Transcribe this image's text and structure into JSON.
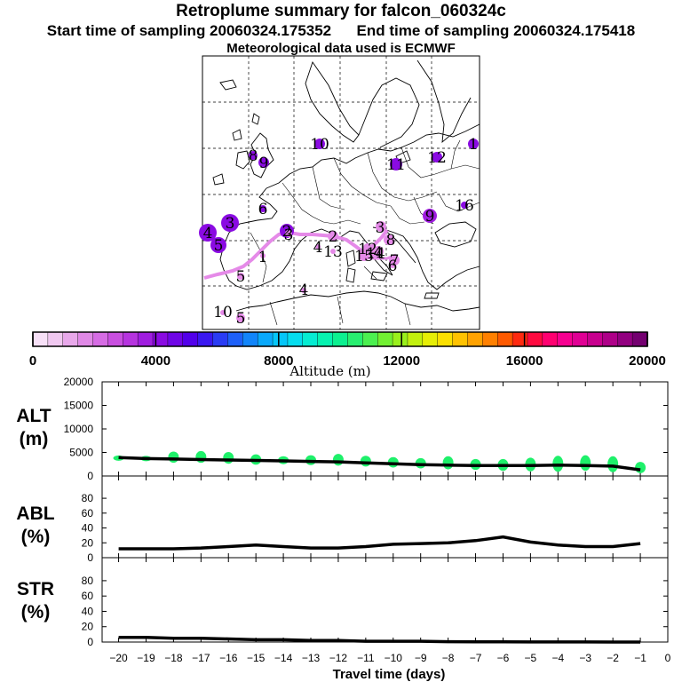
{
  "header": {
    "title": "Retroplume summary for falcon_060324c",
    "line2_start": "Start time of sampling 20060324.175352",
    "line2_end": "End time of sampling 20060324.175418",
    "line3": "Meteorological data used is ECMWF"
  },
  "colorbar": {
    "labels": [
      "0",
      "4000",
      "8000",
      "12000",
      "16000",
      "20000"
    ],
    "title": "Altitude (m)",
    "colors": [
      "#f7e0f7",
      "#f0c8f0",
      "#e8a8ea",
      "#e089e6",
      "#d66ce4",
      "#c94fe0",
      "#b634df",
      "#a01de0",
      "#8a0be2",
      "#6f06e6",
      "#5200ea",
      "#3a18f0",
      "#2a3cf4",
      "#1e60f8",
      "#1285fa",
      "#0aa9fb",
      "#06c6f8",
      "#06ddee",
      "#06ecd2",
      "#06f2b0",
      "#0cf090",
      "#28ef70",
      "#4cf050",
      "#72f032",
      "#9af01c",
      "#c2f00e",
      "#e6ee06",
      "#fbe000",
      "#ffc200",
      "#ffa200",
      "#ff8000",
      "#ff5a00",
      "#ff2a10",
      "#ff0a40",
      "#ff0070",
      "#f60090",
      "#e00094",
      "#c8008e",
      "#ae0088",
      "#920080",
      "#740070"
    ]
  },
  "panels": {
    "alt": {
      "label1": "ALT",
      "label2": "(m)"
    },
    "abl": {
      "label1": "ABL",
      "label2": "(%)"
    },
    "str": {
      "label1": "STR",
      "label2": "(%)"
    }
  },
  "x_axis": {
    "title": "Travel time (days)"
  },
  "map": {
    "labels": [
      {
        "text": "10",
        "dot": true
      },
      {
        "text": "1",
        "dot": true
      },
      {
        "text": "8",
        "dot": true
      },
      {
        "text": "9",
        "dot": true
      },
      {
        "text": "11",
        "dot": true
      },
      {
        "text": "12",
        "dot": true
      },
      {
        "text": "16",
        "dot": true
      },
      {
        "text": "6",
        "dot": true
      },
      {
        "text": "3",
        "dot": true
      },
      {
        "text": "4",
        "dot": true
      },
      {
        "text": "5",
        "dot": true
      },
      {
        "text": "9",
        "dot": true
      },
      {
        "text": "2",
        "dot": true
      },
      {
        "text": "3",
        "dot": false
      },
      {
        "text": "2",
        "dot": false
      },
      {
        "text": "4",
        "dot": false
      },
      {
        "text": "13",
        "dot": false
      },
      {
        "text": "1",
        "dot": false
      },
      {
        "text": "5",
        "dot": false
      },
      {
        "text": "3",
        "dot": false
      },
      {
        "text": "15",
        "dot": false
      },
      {
        "text": "4",
        "dot": false
      },
      {
        "text": "12",
        "dot": false
      },
      {
        "text": "14",
        "dot": false
      },
      {
        "text": "8",
        "dot": false
      },
      {
        "text": "6",
        "dot": false
      },
      {
        "text": "7",
        "dot": false
      },
      {
        "text": "4",
        "dot": false
      },
      {
        "text": "10",
        "dot": false
      },
      {
        "text": "5",
        "dot": false
      }
    ]
  },
  "chart_data": [
    {
      "type": "line",
      "title": "ALT (m)",
      "xlabel": "Travel time (days)",
      "ylabel": "ALT (m)",
      "xlim": [
        -20,
        0
      ],
      "ylim": [
        0,
        20000
      ],
      "x_ticks": [
        -20,
        -19,
        -18,
        -17,
        -16,
        -15,
        -14,
        -13,
        -12,
        -11,
        -10,
        -9,
        -8,
        -7,
        -6,
        -5,
        -4,
        -3,
        -2,
        -1,
        0
      ],
      "y_ticks": [
        "0",
        "5000",
        "10000",
        "15000",
        "20000"
      ],
      "x": [
        -20,
        -19,
        -18,
        -17,
        -16,
        -15,
        -14,
        -13,
        -12,
        -11,
        -10,
        -9,
        -8,
        -7,
        -6,
        -5,
        -4,
        -3,
        -2,
        -1
      ],
      "series": [
        {
          "name": "median altitude",
          "values": [
            3900,
            3700,
            3600,
            3500,
            3400,
            3300,
            3200,
            3100,
            3000,
            2800,
            2600,
            2400,
            2300,
            2200,
            2200,
            2200,
            2300,
            2200,
            2100,
            1300
          ]
        }
      ],
      "spread_series": [
        {
          "name": "altitude spread low",
          "values": [
            3400,
            3300,
            2800,
            2800,
            2600,
            2400,
            2500,
            2300,
            2200,
            2000,
            1800,
            1600,
            1400,
            1300,
            1100,
            1000,
            900,
            1100,
            800,
            600
          ]
        },
        {
          "name": "altitude spread high",
          "values": [
            4200,
            4100,
            5200,
            5300,
            5100,
            4600,
            4200,
            4400,
            4700,
            4300,
            4000,
            3800,
            4200,
            3600,
            3600,
            3900,
            4300,
            4400,
            4200,
            3000
          ]
        }
      ]
    },
    {
      "type": "line",
      "title": "ABL (%)",
      "xlabel": "Travel time (days)",
      "ylabel": "ABL (%)",
      "xlim": [
        -20,
        0
      ],
      "ylim": [
        0,
        100
      ],
      "y_ticks": [
        "0",
        "20",
        "40",
        "60",
        "80"
      ],
      "x": [
        -20,
        -19,
        -18,
        -17,
        -16,
        -15,
        -14,
        -13,
        -12,
        -11,
        -10,
        -9,
        -8,
        -7,
        -6,
        -5,
        -4,
        -3,
        -2,
        -1
      ],
      "series": [
        {
          "name": "ABL fraction",
          "values": [
            12,
            12,
            12,
            13,
            15,
            17,
            15,
            13,
            13,
            15,
            18,
            19,
            20,
            23,
            28,
            21,
            17,
            15,
            15,
            19
          ]
        }
      ]
    },
    {
      "type": "line",
      "title": "STR (%)",
      "xlabel": "Travel time (days)",
      "ylabel": "STR (%)",
      "xlim": [
        -20,
        0
      ],
      "ylim": [
        0,
        100
      ],
      "y_ticks": [
        "0",
        "20",
        "40",
        "60",
        "80"
      ],
      "x": [
        -20,
        -19,
        -18,
        -17,
        -16,
        -15,
        -14,
        -13,
        -12,
        -11,
        -10,
        -9,
        -8,
        -7,
        -6,
        -5,
        -4,
        -3,
        -2,
        -1
      ],
      "series": [
        {
          "name": "STR fraction",
          "values": [
            6,
            6,
            5,
            5,
            4,
            3,
            3,
            2,
            2,
            1,
            1,
            1,
            0.5,
            0.3,
            0.2,
            0.1,
            0.1,
            0.1,
            0,
            0
          ]
        }
      ]
    }
  ]
}
